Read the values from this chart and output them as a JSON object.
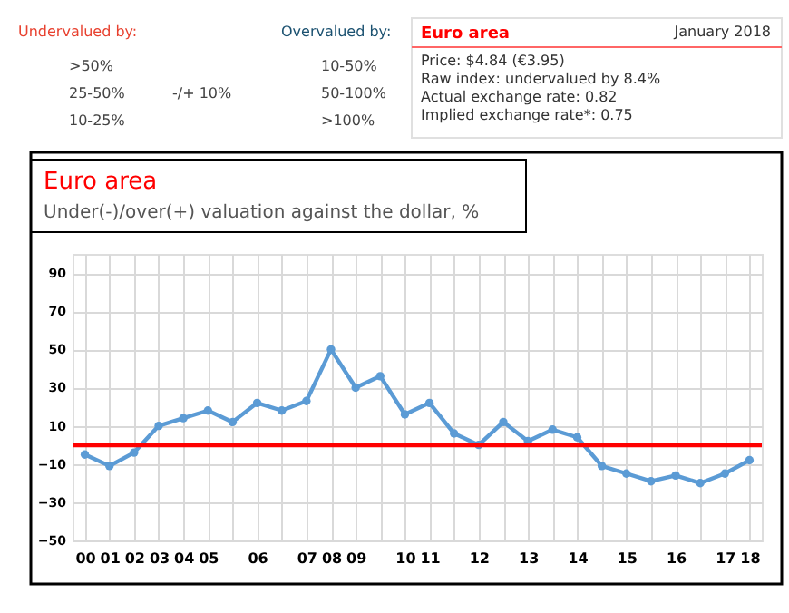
{
  "chart_data": {
    "type": "line",
    "title": "Euro area",
    "subtitle": "Under(-)/over(+) valuation against the dollar, %",
    "categories": [
      "00",
      "01",
      "02",
      "03",
      "04",
      "05",
      null,
      "06",
      null,
      "07",
      "08",
      "09",
      null,
      "10",
      "11",
      null,
      "12",
      null,
      "13",
      null,
      "14",
      null,
      "15",
      null,
      "16",
      null,
      "17",
      "18"
    ],
    "series": [
      {
        "color": "#5b9bd5",
        "values": [
          -5,
          -11,
          -4,
          10,
          14,
          18,
          12,
          22,
          18,
          23,
          50,
          30,
          36,
          16,
          22,
          6,
          0,
          12,
          2,
          8,
          4,
          -11,
          -15,
          -19,
          -16,
          -20,
          -15,
          -8
        ]
      }
    ],
    "ylim": [
      -50,
      100
    ],
    "yticks": [
      -50,
      -30,
      -10,
      10,
      30,
      50,
      70,
      90
    ],
    "grid": true,
    "marker": "circle",
    "line_style": "solid",
    "ref_lines": [
      {
        "axis": "y",
        "value": 0,
        "color": "#ff0000"
      }
    ],
    "annotations": [
      "Undervalued by:",
      ">50%",
      "25-50%",
      "10-25%",
      "-/+ 10%",
      "Overvalued by:",
      "10-50%",
      "50-100%",
      ">100%",
      "Euro area",
      "January 2018",
      "Price: $4.84 (€3.95)",
      "Raw index: undervalued by 8.4%",
      "Actual exchange rate: 0.82",
      "Implied exchange rate*: 0.75"
    ]
  }
}
